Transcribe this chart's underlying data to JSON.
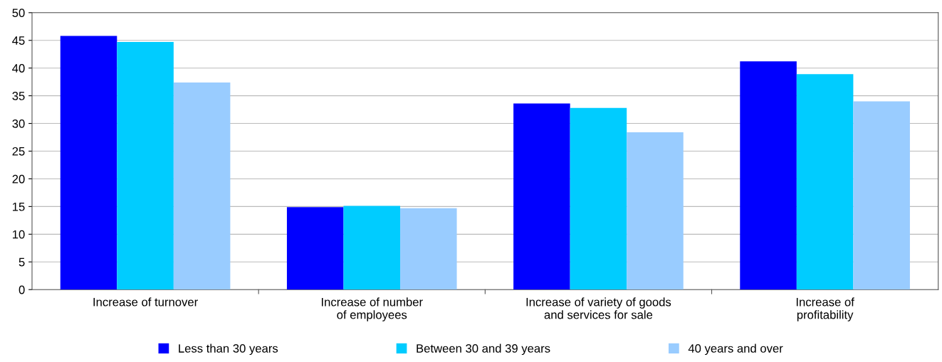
{
  "chart_data": {
    "type": "bar",
    "categories": [
      "Increase of turnover",
      "Increase of number\nof employees",
      "Increase of variety of goods\nand services for sale",
      "Increase of\nprofitability"
    ],
    "series": [
      {
        "name": "Less than 30 years",
        "color": "#0000ff",
        "values": [
          45.8,
          14.9,
          33.6,
          41.2
        ]
      },
      {
        "name": "Between 30 and 39 years",
        "color": "#00ccff",
        "values": [
          44.7,
          15.1,
          32.8,
          38.9
        ]
      },
      {
        "name": "40 years and over",
        "color": "#99ccff",
        "values": [
          37.4,
          14.7,
          28.4,
          34.0
        ]
      }
    ],
    "ylim": [
      0,
      50
    ],
    "yticks": [
      0,
      5,
      10,
      15,
      20,
      25,
      30,
      35,
      40,
      45,
      50
    ],
    "grid": "y",
    "legend": "bottom"
  }
}
